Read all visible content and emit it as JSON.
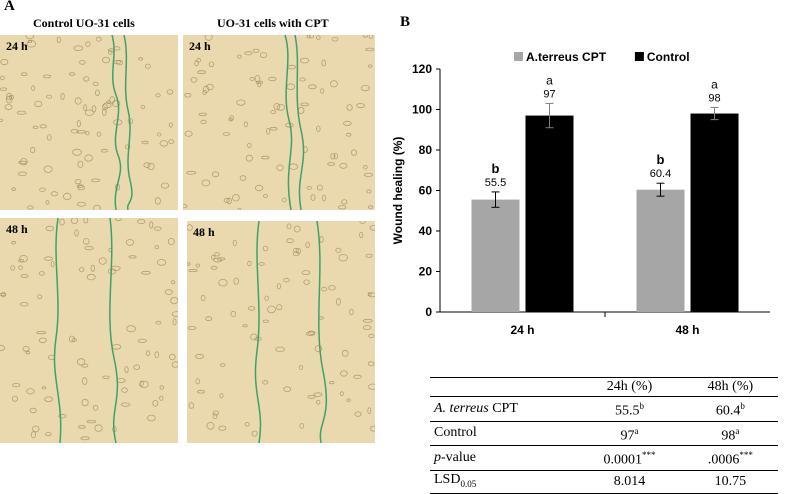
{
  "panel_a": {
    "letter": "A",
    "left_title": "Control UO-31 cells",
    "right_title": "UO-31 cells with CPT",
    "time_labels": [
      "24 h",
      "24 h",
      "48 h",
      "48 h"
    ]
  },
  "panel_b": {
    "letter": "B"
  },
  "colors": {
    "series_1": "#a6a6a6",
    "series_2": "#000000",
    "wound_edge": "#3aa36a",
    "micro_bg": "#ead9ae"
  },
  "chart_data": {
    "type": "bar",
    "title": "",
    "xlabel": "",
    "ylabel": "Wound healing (%)",
    "ylim": [
      0,
      120
    ],
    "yticks": [
      0,
      20,
      40,
      60,
      80,
      100,
      120
    ],
    "categories": [
      "24 h",
      "48 h"
    ],
    "legend_position": "top",
    "series": [
      {
        "name": "A.terreus CPT",
        "values": [
          55.5,
          60.4
        ],
        "errors": [
          3.8,
          3.2
        ],
        "letters": [
          "b",
          "b"
        ],
        "labels": [
          "55.5",
          "60.4"
        ]
      },
      {
        "name": "Control",
        "values": [
          97,
          98
        ],
        "errors": [
          6.0,
          3.0
        ],
        "letters": [
          "a",
          "a"
        ],
        "labels": [
          "97",
          "98"
        ]
      }
    ]
  },
  "table": {
    "header": [
      "",
      "24h (%)",
      "48h (%)"
    ],
    "rows": [
      {
        "label_italic": "A. terreus",
        "label_rest": " CPT",
        "v1": "55.5",
        "s1": "b",
        "v2": "60.4",
        "s2": "b"
      },
      {
        "label_plain": "Control",
        "v1": "97",
        "s1": "a",
        "v2": "98",
        "s2": "a"
      },
      {
        "label_italic": "p",
        "label_rest": "-value",
        "v1": "0.0001",
        "s1": "***",
        "v2": ".0006",
        "s2": "***"
      },
      {
        "label_plain": "LSD",
        "label_sub": "0.05",
        "v1": "8.014",
        "s1": "",
        "v2": "10.75",
        "s2": ""
      }
    ]
  }
}
